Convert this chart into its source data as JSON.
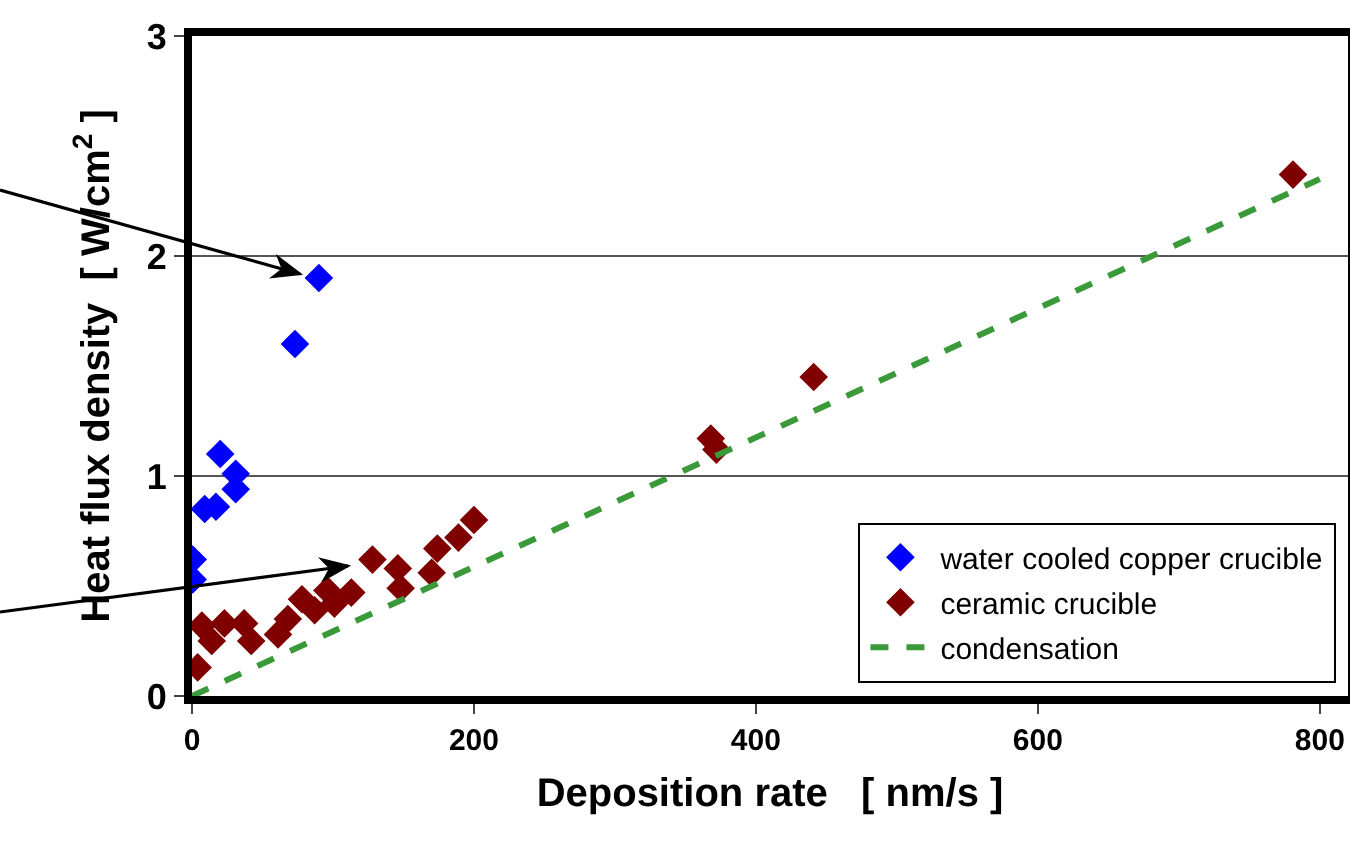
{
  "chart_data": {
    "type": "scatter",
    "xlabel": "Deposition rate   [ nm/s ]",
    "ylabel": "Heat flux density  [ W/cm$^{2}$ ]",
    "xlim": [
      0,
      820
    ],
    "xticks": [
      0,
      200,
      400,
      600,
      800
    ],
    "ylim": [
      0,
      3
    ],
    "yticks": [
      0,
      1,
      2,
      3
    ],
    "grid": "y",
    "legend": "bottom right",
    "marker": "diamond",
    "series": [
      {
        "name": "water cooled copper crucible",
        "color": "#0000ff",
        "x": [
          0.5,
          0.5,
          9,
          17,
          20,
          31,
          31,
          73,
          90
        ],
        "values": [
          0.53,
          0.62,
          0.85,
          0.86,
          1.1,
          1.01,
          0.94,
          1.6,
          1.9
        ]
      },
      {
        "name": "ceramic crucible",
        "color": "#800000",
        "x": [
          4,
          7,
          14,
          23,
          37,
          42,
          61,
          68,
          78,
          87,
          96,
          101,
          113,
          128,
          146,
          148,
          170,
          174,
          189,
          200,
          368,
          372,
          441,
          781
        ],
        "values": [
          0.13,
          0.32,
          0.25,
          0.33,
          0.33,
          0.25,
          0.28,
          0.35,
          0.44,
          0.39,
          0.48,
          0.42,
          0.47,
          0.62,
          0.58,
          0.49,
          0.56,
          0.67,
          0.72,
          0.8,
          1.17,
          1.12,
          1.45,
          2.37
        ]
      },
      {
        "name": "condensation",
        "type": "line",
        "color": "#3a9a3a",
        "line_style": "dashed",
        "marker": "none",
        "x": [
          0,
          800
        ],
        "values": [
          0,
          2.35
        ]
      }
    ]
  }
}
